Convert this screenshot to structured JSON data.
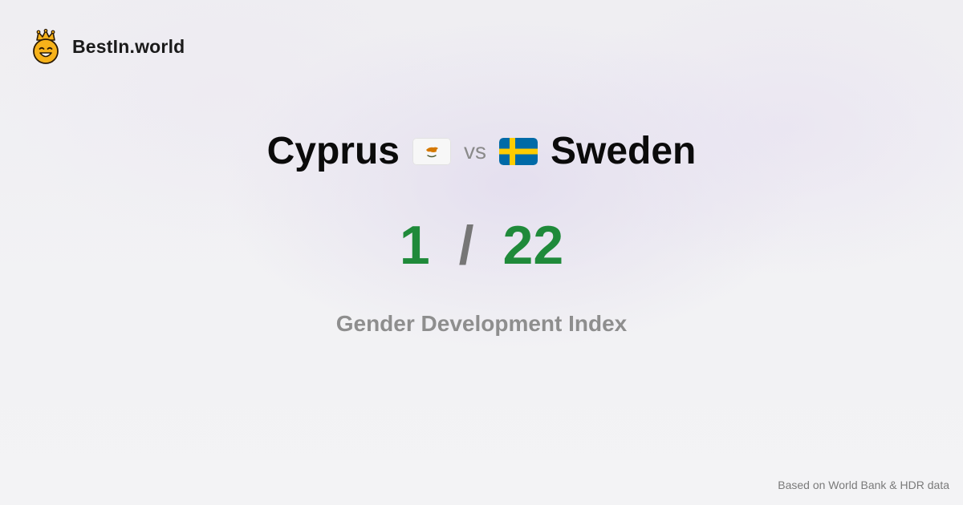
{
  "brand": {
    "name": "BestIn.world",
    "logo_icon": "crowned-smiley-icon"
  },
  "comparison": {
    "left_country": "Cyprus",
    "left_flag_icon": "cyprus-flag-icon",
    "vs_label": "vs",
    "right_country": "Sweden",
    "right_flag_icon": "sweden-flag-icon"
  },
  "ranks": {
    "left_rank": "1",
    "separator": "/",
    "right_rank": "22"
  },
  "metric": {
    "label": "Gender Development Index"
  },
  "footer": {
    "source": "Based on World Bank & HDR data"
  },
  "colors": {
    "rank_green": "#1f8a3a",
    "country_text": "#0b0b0b",
    "muted_text": "#8e8e8e",
    "logo_yellow": "#f6b21a",
    "sweden_blue": "#006aa7",
    "sweden_yellow": "#fecc00",
    "cyprus_copper": "#d57800",
    "cyprus_green": "#4e5b31"
  }
}
